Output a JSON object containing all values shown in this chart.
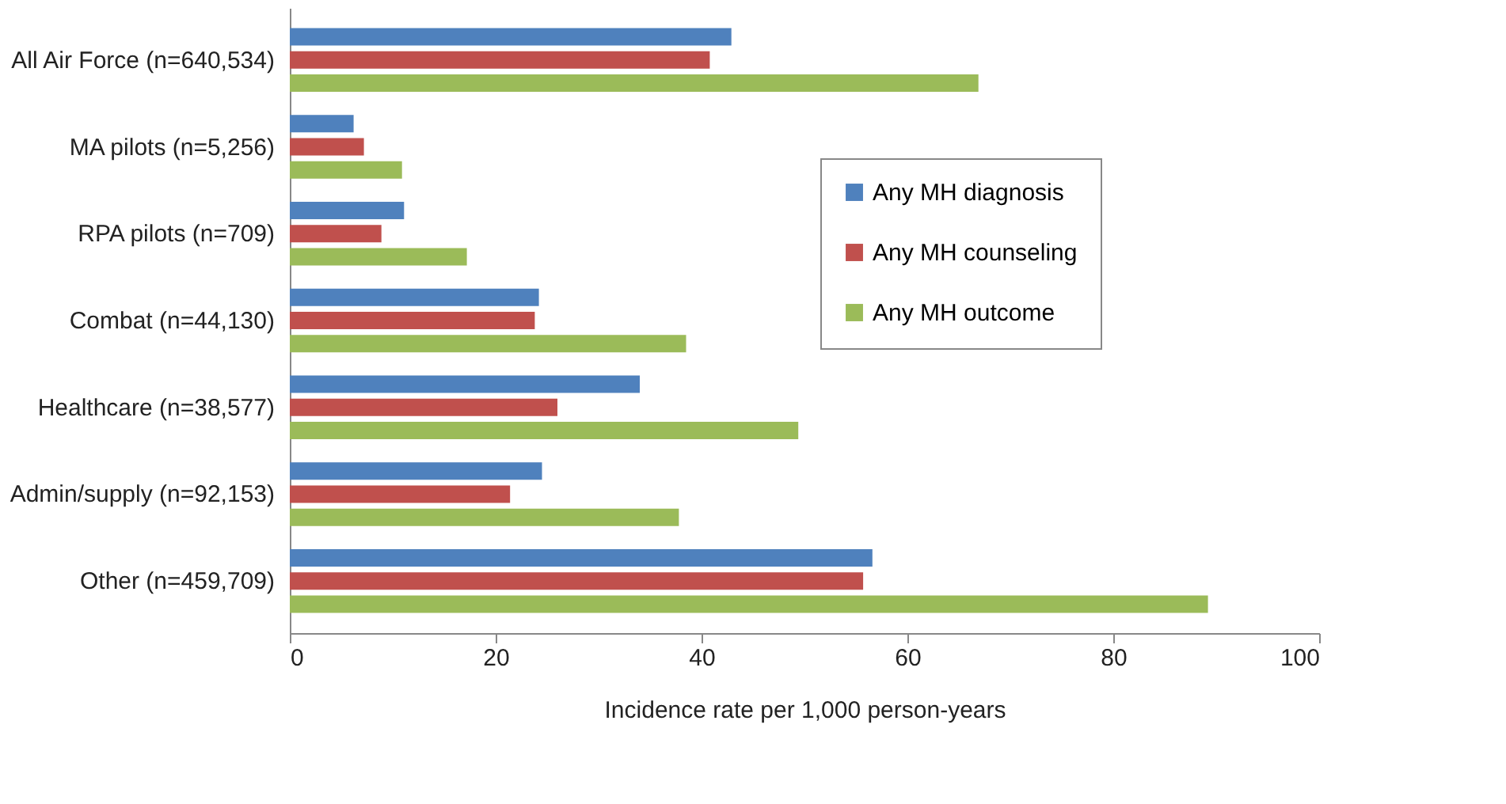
{
  "chart_data": {
    "type": "bar",
    "orientation": "horizontal",
    "xlabel": "Incidence rate per 1,000 person-years",
    "categories": [
      "All Air Force (n=640,534)",
      "MA pilots (n=5,256)",
      "RPA pilots (n=709)",
      "Combat (n=44,130)",
      "Healthcare (n=38,577)",
      "Admin/supply (n=92,153)",
      "Other (n=459,709)"
    ],
    "series": [
      {
        "name": "Any MH diagnosis",
        "color": "#4f81bd",
        "values": [
          42.9,
          6.2,
          11.1,
          24.2,
          34.0,
          24.5,
          56.6
        ]
      },
      {
        "name": "Any MH counseling",
        "color": "#c0504d",
        "values": [
          40.8,
          7.2,
          8.9,
          23.8,
          26.0,
          21.4,
          55.7
        ]
      },
      {
        "name": "Any MH outcome",
        "color": "#9bbb59",
        "values": [
          66.9,
          10.9,
          17.2,
          38.5,
          49.4,
          37.8,
          89.2
        ]
      }
    ],
    "xlim": [
      0,
      100
    ],
    "xticks": [
      0,
      20,
      40,
      60,
      80,
      100
    ],
    "grid": false,
    "legend": "top right"
  }
}
